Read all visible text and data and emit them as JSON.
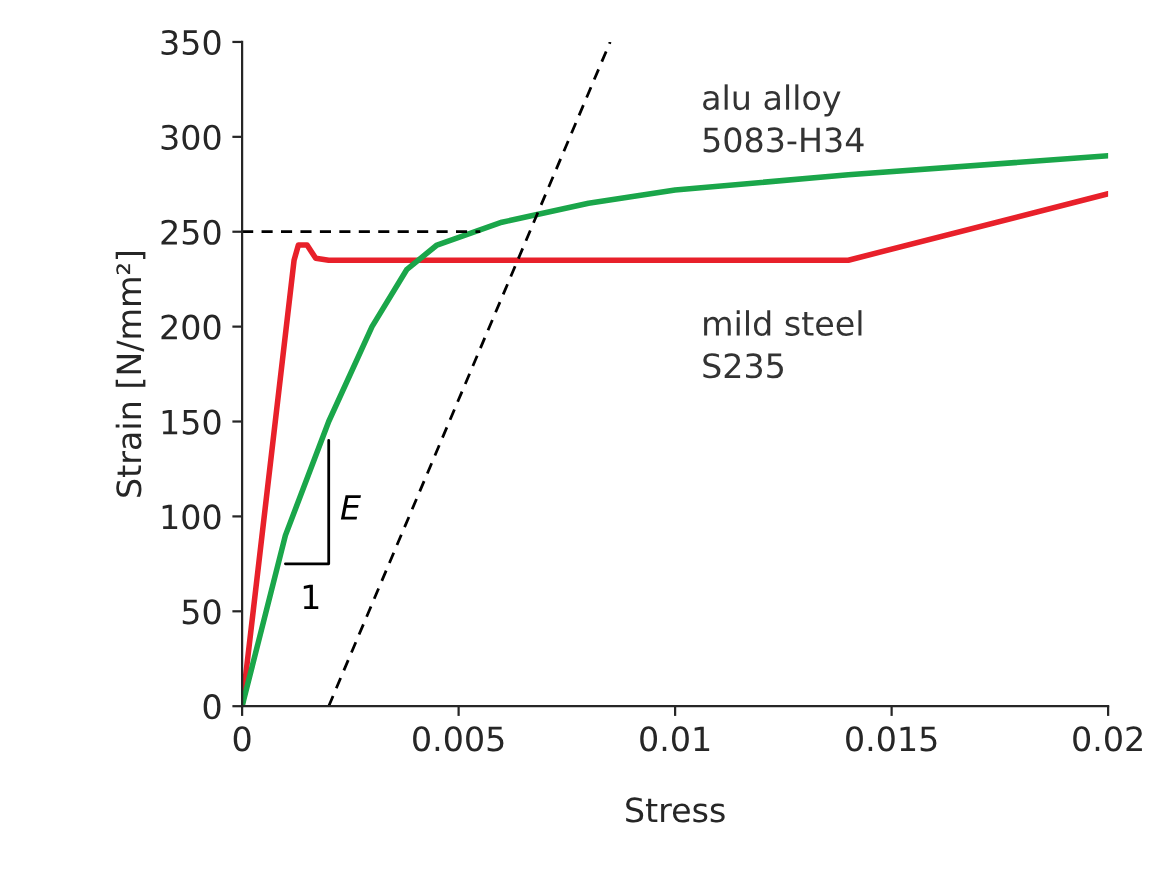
{
  "chart_data": {
    "type": "line",
    "xlabel": "Stress",
    "ylabel": "Strain [N/mm²]",
    "xlim": [
      0,
      0.02
    ],
    "ylim": [
      0,
      350
    ],
    "xticks": [
      0,
      0.005,
      0.01,
      0.015,
      0.02
    ],
    "yticks": [
      0,
      50,
      100,
      150,
      200,
      250,
      300,
      350
    ],
    "grid": false,
    "legend": false,
    "series": [
      {
        "color": "#e8202a",
        "x": [
          0,
          0.0012,
          0.0013,
          0.0015,
          0.0017,
          0.002,
          0.014,
          0.02
        ],
        "values": [
          0,
          235,
          243,
          243,
          236,
          235,
          235,
          270
        ]
      },
      {
        "color": "#1aa64a",
        "x": [
          0,
          0.001,
          0.002,
          0.003,
          0.0038,
          0.0045,
          0.006,
          0.008,
          0.01,
          0.014,
          0.02
        ],
        "values": [
          0,
          90,
          150,
          200,
          230,
          243,
          255,
          265,
          272,
          280,
          290
        ]
      },
      {
        "color": "#000000",
        "line_style": "dashed",
        "x": [
          0.002,
          0.0085
        ],
        "values": [
          0,
          350
        ]
      },
      {
        "color": "#000000",
        "line_style": "dashed",
        "x": [
          0,
          0.0055
        ],
        "values": [
          250,
          250
        ]
      },
      {
        "color": "#000000",
        "x": [
          0.001,
          0.002,
          0.002
        ],
        "values": [
          75,
          75,
          140
        ]
      }
    ],
    "annotations": [
      "E",
      "1",
      "alu alloy\n5083-H34",
      "mild steel\nS235"
    ]
  }
}
